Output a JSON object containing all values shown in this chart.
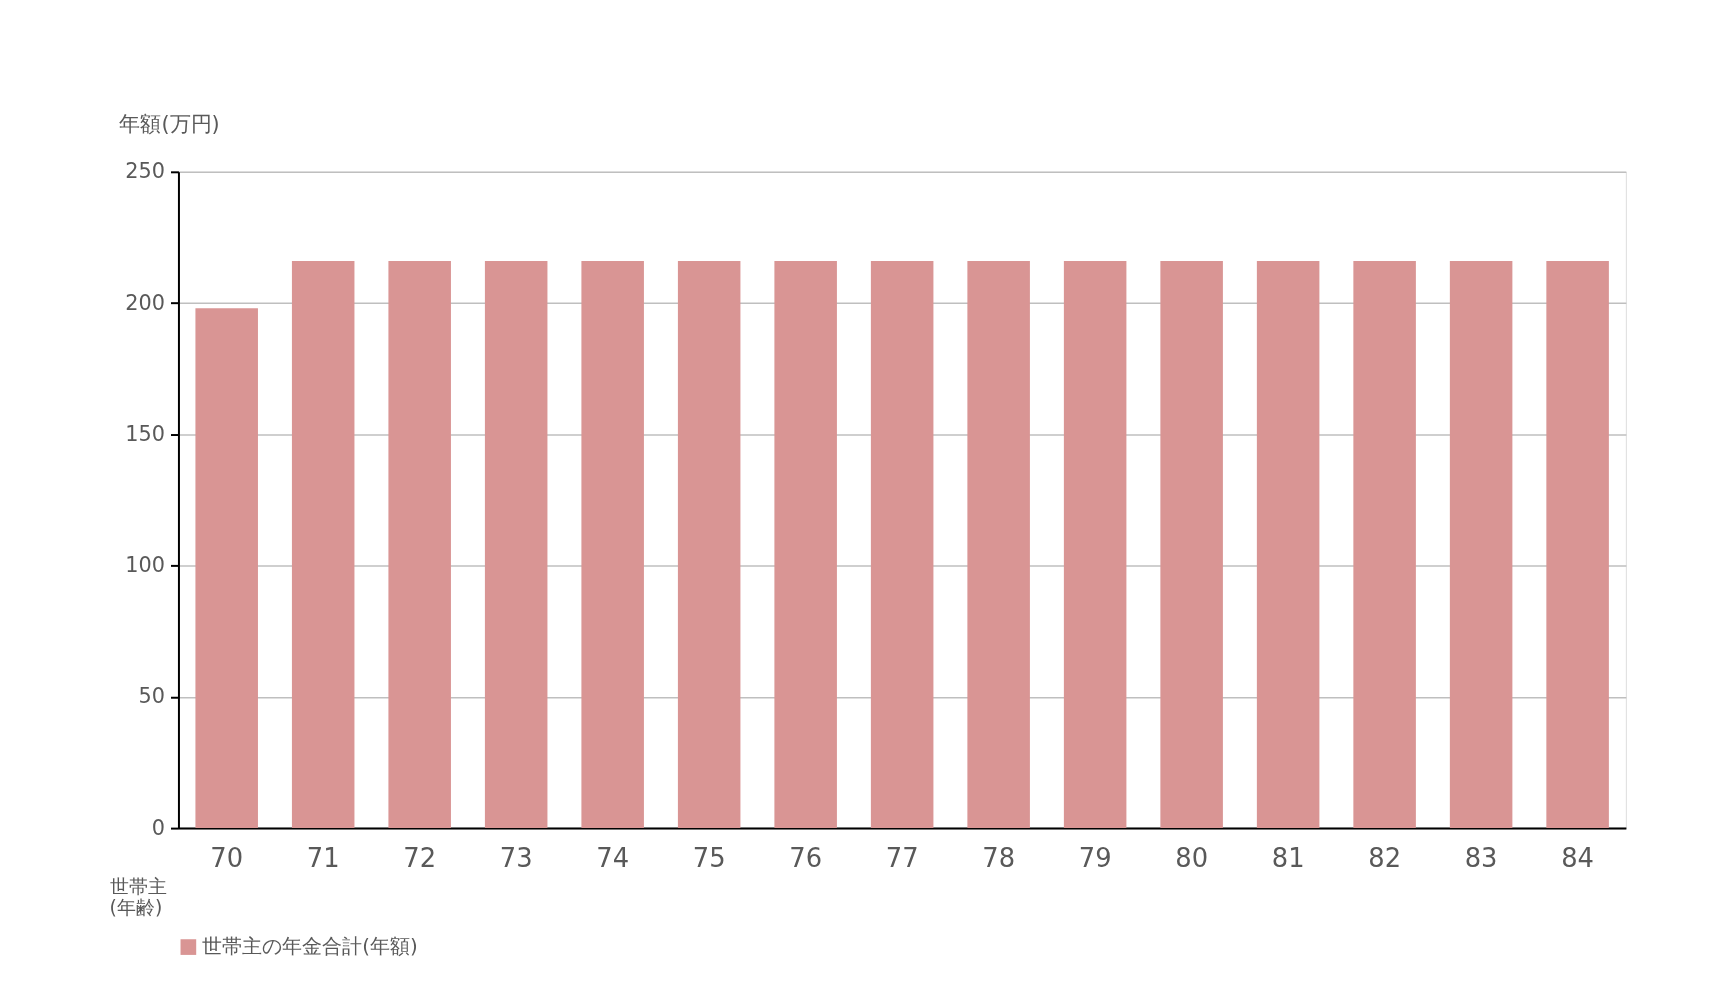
{
  "chart_data": {
    "type": "bar",
    "ylabel": "年額(万円)",
    "xlabel": "世帯主\n(年齢)",
    "categories": [
      "70",
      "71",
      "72",
      "73",
      "74",
      "75",
      "76",
      "77",
      "78",
      "79",
      "80",
      "81",
      "82",
      "83",
      "84"
    ],
    "series": [
      {
        "name": "世帯主の年金合計(年額)",
        "color": "#d99594",
        "values": [
          198,
          216,
          216,
          216,
          216,
          216,
          216,
          216,
          216,
          216,
          216,
          216,
          216,
          216,
          216
        ]
      }
    ],
    "ylim": [
      0,
      250
    ],
    "yticks": [
      0,
      50,
      100,
      150,
      200,
      250
    ],
    "grid": "y",
    "legend": "bottom"
  }
}
